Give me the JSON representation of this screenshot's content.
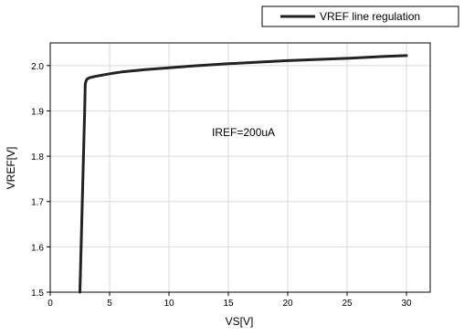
{
  "chart_data": {
    "type": "line",
    "xlabel": "VS[V]",
    "ylabel": "VREF[V]",
    "xlim": [
      0,
      32
    ],
    "ylim": [
      1.5,
      2.05
    ],
    "x_ticks": [
      0,
      5,
      10,
      15,
      20,
      25,
      30
    ],
    "y_ticks": [
      1.5,
      1.6,
      1.7,
      1.8,
      1.9,
      2.0
    ],
    "x_tick_labels": [
      "0",
      "5",
      "10",
      "15",
      "20",
      "25",
      "30"
    ],
    "y_tick_labels": [
      "1.5",
      "1.6",
      "1.7",
      "1.8",
      "1.9",
      "2.0"
    ],
    "grid": true,
    "legend_position": "top-right",
    "annotation": "IREF=200uA",
    "series": [
      {
        "name": "VREF line regulation",
        "color": "#222222",
        "x": [
          2.5,
          2.6,
          2.7,
          2.8,
          2.9,
          2.95,
          3.0,
          3.1,
          3.3,
          3.6,
          4,
          5,
          6,
          8,
          10,
          12,
          15,
          18,
          20,
          22,
          25,
          28,
          30
        ],
        "y": [
          1.5,
          1.6,
          1.7,
          1.8,
          1.9,
          1.958,
          1.965,
          1.97,
          1.973,
          1.975,
          1.977,
          1.982,
          1.986,
          1.991,
          1.995,
          1.999,
          2.004,
          2.008,
          2.011,
          2.013,
          2.016,
          2.02,
          2.022
        ]
      }
    ]
  }
}
